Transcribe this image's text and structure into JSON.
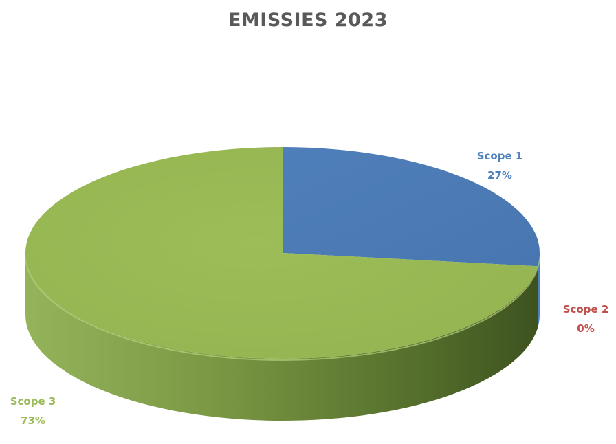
{
  "chart_data": {
    "type": "pie",
    "title": "EMISSIES 2023",
    "slices": [
      {
        "label": "Scope 1",
        "value": 27,
        "value_label": "27%",
        "color": "#4f81bd",
        "label_color": "#4f81bd"
      },
      {
        "label": "Scope 2",
        "value": 0,
        "value_label": "0%",
        "color": "#c0504d",
        "label_color": "#c0504d"
      },
      {
        "label": "Scope 3",
        "value": 73,
        "value_label": "73%",
        "color": "#9bbb59",
        "label_color": "#9bbb59"
      }
    ],
    "style": "3d",
    "legend": "none"
  }
}
